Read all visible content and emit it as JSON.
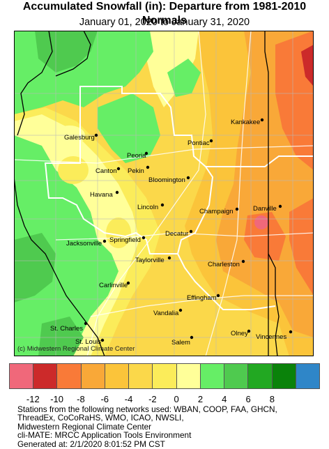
{
  "header": {
    "title": "Accumulated Snowfall (in): Departure from 1981-2010 Normals",
    "subtitle": "January 01, 2020 to January 31, 2020"
  },
  "map": {
    "credit": "(c) Midwestern Regional Climate Center",
    "cities": [
      {
        "name": "Galesburg",
        "dot": [
          118,
          150
        ],
        "label": [
          72,
          156
        ]
      },
      {
        "name": "Kankakee",
        "dot": [
          356,
          128
        ],
        "label": [
          311,
          134
        ]
      },
      {
        "name": "Peoria",
        "dot": [
          190,
          176
        ],
        "label": [
          162,
          182
        ]
      },
      {
        "name": "Pontiac",
        "dot": [
          283,
          158
        ],
        "label": [
          249,
          164
        ]
      },
      {
        "name": "Canton",
        "dot": [
          150,
          198
        ],
        "label": [
          117,
          204
        ]
      },
      {
        "name": "Pekin",
        "dot": [
          192,
          196
        ],
        "label": [
          163,
          204
        ]
      },
      {
        "name": "Bloomington",
        "dot": [
          250,
          211
        ],
        "label": [
          193,
          217
        ]
      },
      {
        "name": "Havana",
        "dot": [
          148,
          232
        ],
        "label": [
          109,
          238
        ]
      },
      {
        "name": "Lincoln",
        "dot": [
          213,
          250
        ],
        "label": [
          177,
          256
        ]
      },
      {
        "name": "Champaign",
        "dot": [
          320,
          256
        ],
        "label": [
          266,
          262
        ]
      },
      {
        "name": "Danville",
        "dot": [
          382,
          252
        ],
        "label": [
          343,
          258
        ]
      },
      {
        "name": "Jacksonville",
        "dot": [
          130,
          302
        ],
        "label": [
          75,
          308
        ]
      },
      {
        "name": "Springfield",
        "dot": [
          186,
          297
        ],
        "label": [
          137,
          303
        ]
      },
      {
        "name": "Decatur",
        "dot": [
          254,
          288
        ],
        "label": [
          217,
          294
        ]
      },
      {
        "name": "Taylorville",
        "dot": [
          223,
          326
        ],
        "label": [
          174,
          332
        ]
      },
      {
        "name": "Charleston",
        "dot": [
          329,
          331
        ],
        "label": [
          278,
          338
        ]
      },
      {
        "name": "Carlinville",
        "dot": [
          164,
          362
        ],
        "label": [
          122,
          368
        ]
      },
      {
        "name": "Effingham",
        "dot": [
          293,
          380
        ],
        "label": [
          248,
          386
        ]
      },
      {
        "name": "Vandalia",
        "dot": [
          239,
          401
        ],
        "label": [
          200,
          408
        ]
      },
      {
        "name": "St. Charles",
        "dot": [
          103,
          420
        ],
        "label": [
          52,
          430
        ]
      },
      {
        "name": "Olney",
        "dot": [
          337,
          431
        ],
        "label": [
          311,
          437
        ]
      },
      {
        "name": "Vincennes",
        "dot": [
          397,
          432
        ],
        "label": [
          347,
          442
        ]
      },
      {
        "name": "St. Louis",
        "dot": [
          127,
          444
        ],
        "label": [
          88,
          449
        ]
      },
      {
        "name": "Salem",
        "dot": [
          255,
          440
        ],
        "label": [
          226,
          450
        ]
      }
    ]
  },
  "legend": {
    "colors": [
      "#f0687a",
      "#cc2a2a",
      "#f97a38",
      "#f9a838",
      "#fbc43a",
      "#fbd84a",
      "#fbec5a",
      "#ffff99",
      "#66ee66",
      "#4fca4f",
      "#22a822",
      "#0a820a",
      "#2f86c8"
    ],
    "ticks": [
      "-12",
      "-10",
      "-8",
      "-6",
      "-4",
      "-2",
      "0",
      "2",
      "4",
      "6",
      "8"
    ]
  },
  "footer": {
    "lines": [
      "Stations from the following networks used: WBAN, COOP, FAA, GHCN,",
      "ThreadEx, CoCoRaHS, WMO, ICAO, NWSLI,",
      "Midwestern Regional Climate Center",
      "cli-MATE: MRCC Application Tools Environment",
      "Generated at: 2/1/2020 8:01:52 PM CST"
    ]
  }
}
